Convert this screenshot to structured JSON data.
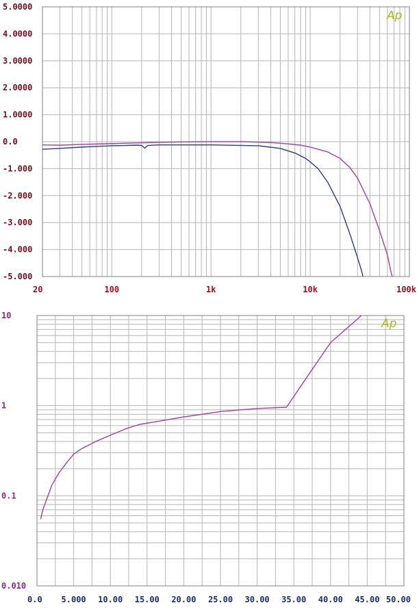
{
  "colors": {
    "grid": "#b4b4b4",
    "series_purple": "#a0409a",
    "series_blue": "#283a88",
    "frame": "#808080",
    "top_y_label": "#7a0a1a",
    "top_x_label": "#a01020",
    "bottom_y_label": "#8a2a8a",
    "bottom_x_label": "#1a2a7a",
    "logo": "#a8b820"
  },
  "logo_text": "Ap",
  "chart_data": [
    {
      "type": "line",
      "title": "",
      "xlabel": "",
      "ylabel": "",
      "x_scale": "log",
      "xlim": [
        20,
        100000
      ],
      "ylim": [
        -5,
        5
      ],
      "y_ticks": [
        5,
        4,
        3,
        2,
        1,
        0,
        -1,
        -2,
        -3,
        -4,
        -5
      ],
      "y_tick_labels": [
        "5.0000",
        "4.0000",
        "3.0000",
        "2.0000",
        "1.0000",
        "0.0",
        "-1.000",
        "-2.000",
        "-3.000",
        "-4.000",
        "-5.000"
      ],
      "x_ticks": [
        20,
        100,
        1000,
        10000,
        100000
      ],
      "x_tick_labels": [
        "20",
        "100",
        "1k",
        "10k",
        "100k"
      ],
      "grid": true,
      "series": [
        {
          "color_key": "series_purple",
          "points": [
            [
              20,
              -0.12
            ],
            [
              30,
              -0.13
            ],
            [
              50,
              -0.1
            ],
            [
              100,
              -0.07
            ],
            [
              200,
              -0.04
            ],
            [
              500,
              -0.01
            ],
            [
              1000,
              0
            ],
            [
              2000,
              0
            ],
            [
              4000,
              -0.03
            ],
            [
              6000,
              -0.08
            ],
            [
              8000,
              -0.13
            ],
            [
              10000,
              -0.2
            ],
            [
              15000,
              -0.38
            ],
            [
              20000,
              -0.62
            ],
            [
              25000,
              -0.95
            ],
            [
              30000,
              -1.35
            ],
            [
              40000,
              -2.3
            ],
            [
              50000,
              -3.3
            ],
            [
              60000,
              -4.2
            ],
            [
              65000,
              -4.8
            ],
            [
              67000,
              -5
            ]
          ]
        },
        {
          "color_key": "series_blue",
          "points": [
            [
              20,
              -0.28
            ],
            [
              30,
              -0.25
            ],
            [
              50,
              -0.2
            ],
            [
              100,
              -0.15
            ],
            [
              180,
              -0.13
            ],
            [
              200,
              -0.14
            ],
            [
              215,
              -0.24
            ],
            [
              230,
              -0.14
            ],
            [
              300,
              -0.12
            ],
            [
              1000,
              -0.12
            ],
            [
              3000,
              -0.15
            ],
            [
              5000,
              -0.25
            ],
            [
              7000,
              -0.42
            ],
            [
              9000,
              -0.62
            ],
            [
              10000,
              -0.75
            ],
            [
              12000,
              -1.0
            ],
            [
              15000,
              -1.5
            ],
            [
              20000,
              -2.4
            ],
            [
              25000,
              -3.4
            ],
            [
              30000,
              -4.3
            ],
            [
              33000,
              -4.8
            ],
            [
              34000,
              -5
            ]
          ]
        }
      ]
    },
    {
      "type": "line",
      "title": "",
      "xlabel": "",
      "ylabel": "",
      "y_scale": "log",
      "xlim": [
        0,
        50
      ],
      "ylim": [
        0.01,
        10
      ],
      "y_ticks": [
        10,
        1,
        0.1,
        0.01
      ],
      "y_tick_labels": [
        "10",
        "1",
        "0.1",
        "0.010"
      ],
      "x_ticks": [
        0,
        5,
        10,
        15,
        20,
        25,
        30,
        35,
        40,
        45,
        50
      ],
      "x_tick_labels": [
        "0.0",
        "5.000",
        "10.00",
        "15.00",
        "20.00",
        "25.00",
        "30.00",
        "35.00",
        "40.00",
        "45.00",
        "50.00"
      ],
      "grid": true,
      "series": [
        {
          "color_key": "series_purple",
          "points": [
            [
              0.5,
              0.055
            ],
            [
              0.7,
              0.065
            ],
            [
              1,
              0.078
            ],
            [
              1.5,
              0.1
            ],
            [
              2,
              0.13
            ],
            [
              3,
              0.18
            ],
            [
              4,
              0.23
            ],
            [
              5,
              0.29
            ],
            [
              6,
              0.33
            ],
            [
              8,
              0.4
            ],
            [
              10,
              0.47
            ],
            [
              12,
              0.55
            ],
            [
              14,
              0.62
            ],
            [
              17,
              0.68
            ],
            [
              20,
              0.75
            ],
            [
              25,
              0.86
            ],
            [
              30,
              0.93
            ],
            [
              34,
              0.96
            ],
            [
              37,
              2.2
            ],
            [
              40,
              5.0
            ],
            [
              43,
              8.2
            ],
            [
              44.2,
              10
            ]
          ]
        }
      ]
    }
  ]
}
